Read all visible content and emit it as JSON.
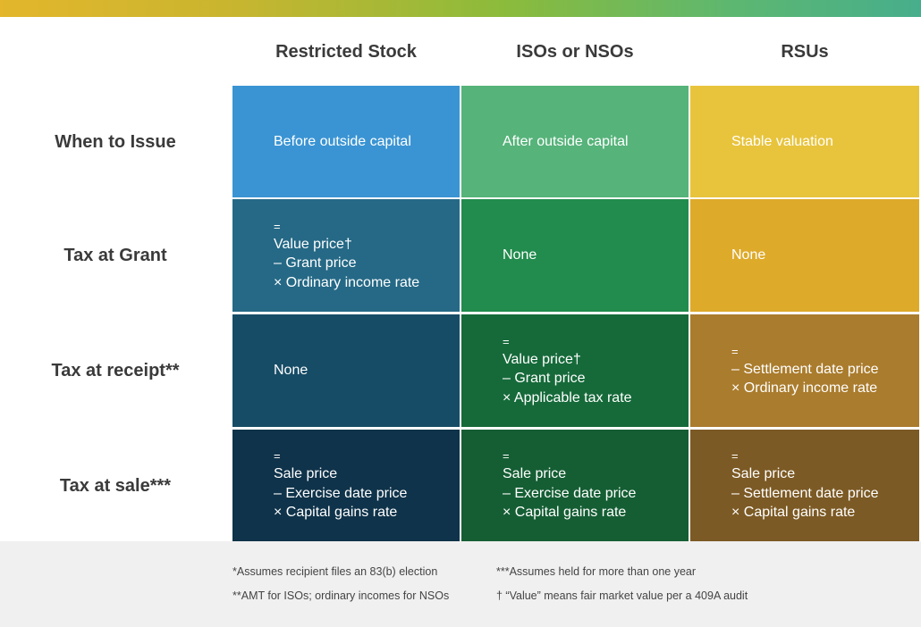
{
  "columns": [
    "Restricted Stock",
    "ISOs or NSOs",
    "RSUs"
  ],
  "rows": [
    "When to Issue",
    "Tax at Grant",
    "Tax at receipt**",
    "Tax at sale***"
  ],
  "cells": {
    "r0": [
      {
        "lines": [
          "Before outside capital"
        ]
      },
      {
        "lines": [
          "After outside capital"
        ]
      },
      {
        "lines": [
          "Stable valuation"
        ]
      }
    ],
    "r1": [
      {
        "eq": "=",
        "lines": [
          "Value price†",
          "– Grant price",
          "× Ordinary income rate"
        ]
      },
      {
        "lines": [
          "None"
        ]
      },
      {
        "lines": [
          "None"
        ]
      }
    ],
    "r2": [
      {
        "lines": [
          "None"
        ]
      },
      {
        "eq": "=",
        "lines": [
          "Value price†",
          "– Grant price",
          "× Applicable tax rate"
        ]
      },
      {
        "eq": "=",
        "lines": [
          "– Settlement date price",
          "× Ordinary income rate"
        ]
      }
    ],
    "r3": [
      {
        "eq": "=",
        "lines": [
          "Sale price",
          "– Exercise date price",
          "× Capital gains rate"
        ]
      },
      {
        "eq": "=",
        "lines": [
          "Sale price",
          "– Exercise date price",
          "× Capital gains rate"
        ]
      },
      {
        "eq": "=",
        "lines": [
          "Sale price",
          "– Settlement date price",
          "× Capital gains rate"
        ]
      }
    ]
  },
  "colors": {
    "r0": [
      "#3a94d3",
      "#56b37a",
      "#e8c43d"
    ],
    "r1": [
      "#256986",
      "#218c4d",
      "#deaa2a"
    ],
    "r2": [
      "#174c66",
      "#166a3a",
      "#aa7c2d"
    ],
    "r3": [
      "#0f334a",
      "#155e34",
      "#7c5a25"
    ]
  },
  "footnotes": [
    "*Assumes recipient files an 83(b) election",
    "**AMT for ISOs; ordinary incomes for NSOs",
    "***Assumes held for more than one year",
    "† “Value” means fair market value per a 409A audit"
  ]
}
